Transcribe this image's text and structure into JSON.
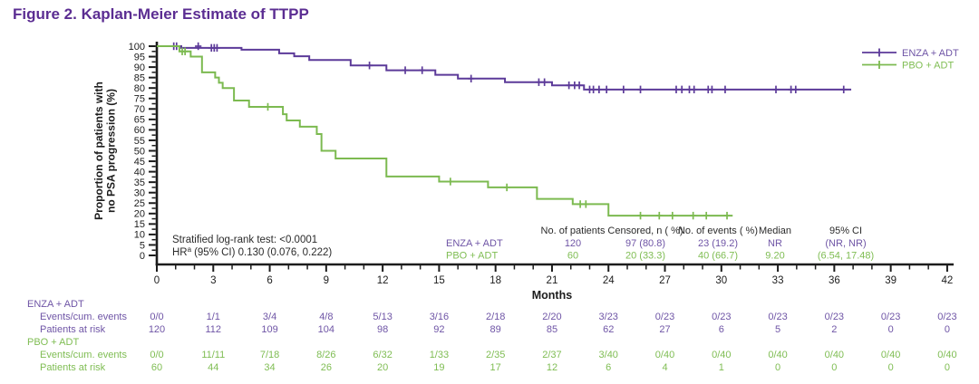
{
  "title": "Figure 2. Kaplan-Meier Estimate of TTPP",
  "colors": {
    "axis": "#1c1c1c",
    "text": "#2b2b2b",
    "title_purple": "#5b2d92"
  },
  "chart_data": {
    "type": "line",
    "subtype": "kaplan-meier-step",
    "title": "Figure 2. Kaplan-Meier Estimate of TTPP",
    "xlabel": "Months",
    "ylabel_lines": [
      "Proportion of patients with",
      "no PSA progression (%)"
    ],
    "xlim": [
      0,
      42
    ],
    "xtick_major_step": 3,
    "xtick_minor_step": 1,
    "ylim": [
      0,
      100
    ],
    "ytick_major_step": 5,
    "grid": false,
    "legend_position": "top-right",
    "annotations": {
      "logrank": "Stratified log-rank test: <0.0001",
      "hr_base": "HR",
      "hr_sup": "a",
      "hr_rest": "(95% CI) 0.130 (0.076, 0.222)"
    },
    "series": [
      {
        "name": "ENZA + ADT",
        "color": "#5c3a99",
        "label_color": "#6f55a6",
        "start": [
          0,
          100
        ],
        "end_month": 36.9,
        "steps": [
          [
            1.3,
            99.2
          ],
          [
            4.5,
            98.3
          ],
          [
            6.5,
            96.6
          ],
          [
            7.3,
            95.2
          ],
          [
            8.1,
            93.4
          ],
          [
            10.3,
            90.8
          ],
          [
            12.2,
            88.5
          ],
          [
            14.8,
            86.3
          ],
          [
            16.0,
            84.5
          ],
          [
            18.5,
            82.8
          ],
          [
            21.0,
            81.3
          ],
          [
            22.7,
            79.3
          ]
        ],
        "censors": [
          [
            0.9,
            100
          ],
          [
            1.05,
            100
          ],
          [
            2.2,
            100
          ],
          [
            2.9,
            99.2
          ],
          [
            3.05,
            99.2
          ],
          [
            3.2,
            99.2
          ],
          [
            11.3,
            90.8
          ],
          [
            13.2,
            88.5
          ],
          [
            14.1,
            88.5
          ],
          [
            16.7,
            84.5
          ],
          [
            20.3,
            82.8
          ],
          [
            20.6,
            82.8
          ],
          [
            21.9,
            81.3
          ],
          [
            22.2,
            81.3
          ],
          [
            22.45,
            81.3
          ],
          [
            23.0,
            79.3
          ],
          [
            23.2,
            79.3
          ],
          [
            23.5,
            79.3
          ],
          [
            23.9,
            79.3
          ],
          [
            24.8,
            79.3
          ],
          [
            25.7,
            79.3
          ],
          [
            27.6,
            79.3
          ],
          [
            27.9,
            79.3
          ],
          [
            28.3,
            79.3
          ],
          [
            28.55,
            79.3
          ],
          [
            29.3,
            79.3
          ],
          [
            29.5,
            79.3
          ],
          [
            30.2,
            79.3
          ],
          [
            32.9,
            79.3
          ],
          [
            33.7,
            79.3
          ],
          [
            33.95,
            79.3
          ],
          [
            36.5,
            79.3
          ]
        ]
      },
      {
        "name": "PBO + ADT",
        "color": "#7cba50",
        "label_color": "#7fbd53",
        "start": [
          0,
          100
        ],
        "end_month": 30.6,
        "steps": [
          [
            1.2,
            97.5
          ],
          [
            1.8,
            95
          ],
          [
            2.4,
            87.5
          ],
          [
            3.1,
            85
          ],
          [
            3.3,
            82.5
          ],
          [
            3.5,
            80
          ],
          [
            4.1,
            74
          ],
          [
            4.9,
            71
          ],
          [
            6.7,
            67.5
          ],
          [
            6.9,
            64.5
          ],
          [
            7.6,
            61.5
          ],
          [
            8.5,
            58
          ],
          [
            8.75,
            50
          ],
          [
            9.5,
            46.3
          ],
          [
            12.2,
            37.7
          ],
          [
            15.0,
            35.3
          ],
          [
            17.6,
            32.5
          ],
          [
            20.2,
            27
          ],
          [
            22.1,
            24.5
          ],
          [
            24.0,
            19
          ]
        ],
        "censors": [
          [
            1.35,
            97.5
          ],
          [
            1.5,
            97.5
          ],
          [
            5.9,
            71
          ],
          [
            15.6,
            35.3
          ],
          [
            18.6,
            32.5
          ],
          [
            22.5,
            24.5
          ],
          [
            22.8,
            24.5
          ],
          [
            25.7,
            19
          ],
          [
            26.7,
            19
          ],
          [
            27.4,
            19
          ],
          [
            28.5,
            19
          ],
          [
            29.2,
            19
          ],
          [
            30.3,
            19
          ]
        ]
      }
    ],
    "summary_table": {
      "headers": [
        "No. of patients",
        "Censored, n ( %)",
        "No. of events ( %)",
        "Median",
        "95% CI"
      ],
      "rows": [
        {
          "label": "ENZA + ADT",
          "color": "#6f55a6",
          "values": [
            "120",
            "97 (80.8)",
            "23 (19.2)",
            "NR",
            "(NR, NR)"
          ]
        },
        {
          "label": "PBO + ADT",
          "color": "#7fbd53",
          "values": [
            "60",
            "20 (33.3)",
            "40 (66.7)",
            "9.20",
            "(6.54, 17.48)"
          ]
        }
      ]
    }
  },
  "risk_table": {
    "timepoints": [
      0,
      3,
      6,
      9,
      12,
      15,
      18,
      21,
      24,
      27,
      30,
      33,
      36,
      39,
      42
    ],
    "groups": [
      {
        "label": "ENZA + ADT",
        "color": "#6f55a6",
        "rows": [
          {
            "label": "Events/cum. events",
            "values": [
              "0/0",
              "1/1",
              "3/4",
              "4/8",
              "5/13",
              "3/16",
              "2/18",
              "2/20",
              "3/23",
              "0/23",
              "0/23",
              "0/23",
              "0/23",
              "0/23",
              "0/23"
            ]
          },
          {
            "label": "Patients at risk",
            "values": [
              "120",
              "112",
              "109",
              "104",
              "98",
              "92",
              "89",
              "85",
              "62",
              "27",
              "6",
              "5",
              "2",
              "0",
              "0"
            ]
          }
        ]
      },
      {
        "label": "PBO + ADT",
        "color": "#7fbd53",
        "rows": [
          {
            "label": "Events/cum. events",
            "values": [
              "0/0",
              "11/11",
              "7/18",
              "8/26",
              "6/32",
              "1/33",
              "2/35",
              "2/37",
              "3/40",
              "0/40",
              "0/40",
              "0/40",
              "0/40",
              "0/40",
              "0/40"
            ]
          },
          {
            "label": "Patients at risk",
            "values": [
              "60",
              "44",
              "34",
              "26",
              "20",
              "19",
              "17",
              "12",
              "6",
              "4",
              "1",
              "0",
              "0",
              "0",
              "0"
            ]
          }
        ]
      }
    ]
  }
}
